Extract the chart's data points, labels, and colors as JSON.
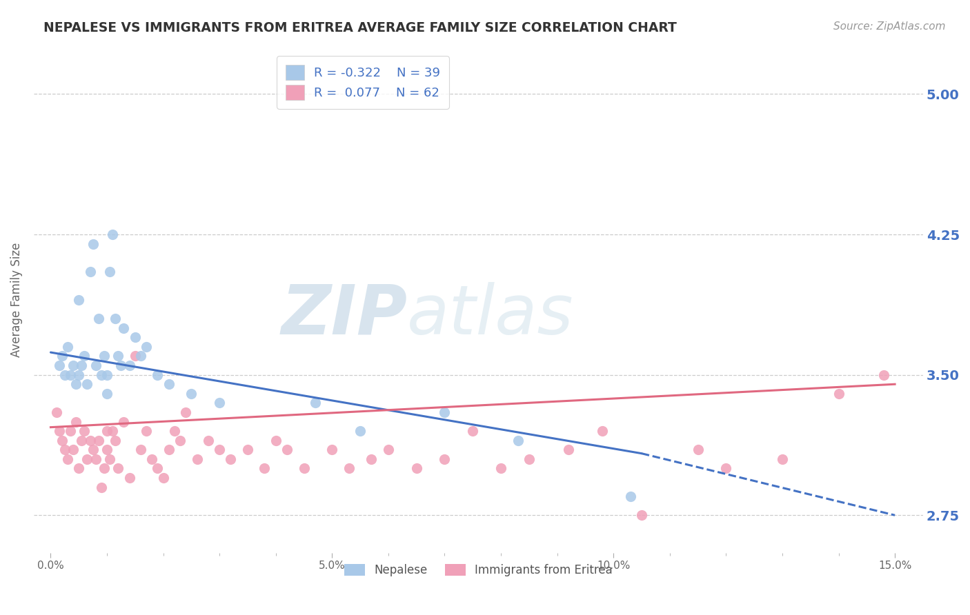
{
  "title": "NEPALESE VS IMMIGRANTS FROM ERITREA AVERAGE FAMILY SIZE CORRELATION CHART",
  "source": "Source: ZipAtlas.com",
  "ylabel": "Average Family Size",
  "xlim": [
    -0.3,
    15.5
  ],
  "ylim": [
    2.55,
    5.25
  ],
  "yticks": [
    2.75,
    3.5,
    4.25,
    5.0
  ],
  "right_ytick_color": "#4472c4",
  "legend_R1": "R = -0.322",
  "legend_N1": "N = 39",
  "legend_R2": "R =  0.077",
  "legend_N2": "N = 62",
  "blue_color": "#a8c8e8",
  "pink_color": "#f0a0b8",
  "blue_line_color": "#4472c4",
  "pink_line_color": "#e06880",
  "watermark_zip": "ZIP",
  "watermark_atlas": "atlas",
  "nepalese_x": [
    0.15,
    0.2,
    0.25,
    0.3,
    0.35,
    0.4,
    0.45,
    0.5,
    0.5,
    0.55,
    0.6,
    0.65,
    0.7,
    0.75,
    0.8,
    0.85,
    0.9,
    0.95,
    1.0,
    1.0,
    1.05,
    1.1,
    1.15,
    1.2,
    1.25,
    1.3,
    1.4,
    1.5,
    1.6,
    1.7,
    1.9,
    2.1,
    2.5,
    3.0,
    4.7,
    5.5,
    7.0,
    8.3,
    10.3
  ],
  "nepalese_y": [
    3.55,
    3.6,
    3.5,
    3.65,
    3.5,
    3.55,
    3.45,
    3.5,
    3.9,
    3.55,
    3.6,
    3.45,
    4.05,
    4.2,
    3.55,
    3.8,
    3.5,
    3.6,
    3.4,
    3.5,
    4.05,
    4.25,
    3.8,
    3.6,
    3.55,
    3.75,
    3.55,
    3.7,
    3.6,
    3.65,
    3.5,
    3.45,
    3.4,
    3.35,
    3.35,
    3.2,
    3.3,
    3.15,
    2.85
  ],
  "eritrea_x": [
    0.1,
    0.15,
    0.2,
    0.25,
    0.3,
    0.35,
    0.4,
    0.45,
    0.5,
    0.55,
    0.6,
    0.65,
    0.7,
    0.75,
    0.8,
    0.85,
    0.9,
    0.95,
    1.0,
    1.0,
    1.05,
    1.1,
    1.15,
    1.2,
    1.3,
    1.4,
    1.5,
    1.6,
    1.7,
    1.8,
    1.9,
    2.0,
    2.1,
    2.2,
    2.3,
    2.4,
    2.6,
    2.8,
    3.0,
    3.2,
    3.5,
    3.8,
    4.0,
    4.2,
    4.5,
    5.0,
    5.3,
    5.7,
    6.0,
    6.5,
    7.0,
    7.5,
    8.0,
    8.5,
    9.2,
    9.8,
    10.5,
    11.5,
    12.0,
    13.0,
    14.0,
    14.8
  ],
  "eritrea_y": [
    3.3,
    3.2,
    3.15,
    3.1,
    3.05,
    3.2,
    3.1,
    3.25,
    3.0,
    3.15,
    3.2,
    3.05,
    3.15,
    3.1,
    3.05,
    3.15,
    2.9,
    3.0,
    3.1,
    3.2,
    3.05,
    3.2,
    3.15,
    3.0,
    3.25,
    2.95,
    3.6,
    3.1,
    3.2,
    3.05,
    3.0,
    2.95,
    3.1,
    3.2,
    3.15,
    3.3,
    3.05,
    3.15,
    3.1,
    3.05,
    3.1,
    3.0,
    3.15,
    3.1,
    3.0,
    3.1,
    3.0,
    3.05,
    3.1,
    3.0,
    3.05,
    3.2,
    3.0,
    3.05,
    3.1,
    3.2,
    2.75,
    3.1,
    3.0,
    3.05,
    3.4,
    3.5
  ],
  "bg_color": "#ffffff",
  "grid_color": "#cccccc",
  "blue_line_x0": 0.0,
  "blue_line_y0": 3.62,
  "blue_line_x1": 10.5,
  "blue_line_y1": 3.08,
  "blue_dash_x1": 15.0,
  "blue_dash_y1": 2.75,
  "pink_line_x0": 0.0,
  "pink_line_y0": 3.22,
  "pink_line_x1": 15.0,
  "pink_line_y1": 3.45
}
